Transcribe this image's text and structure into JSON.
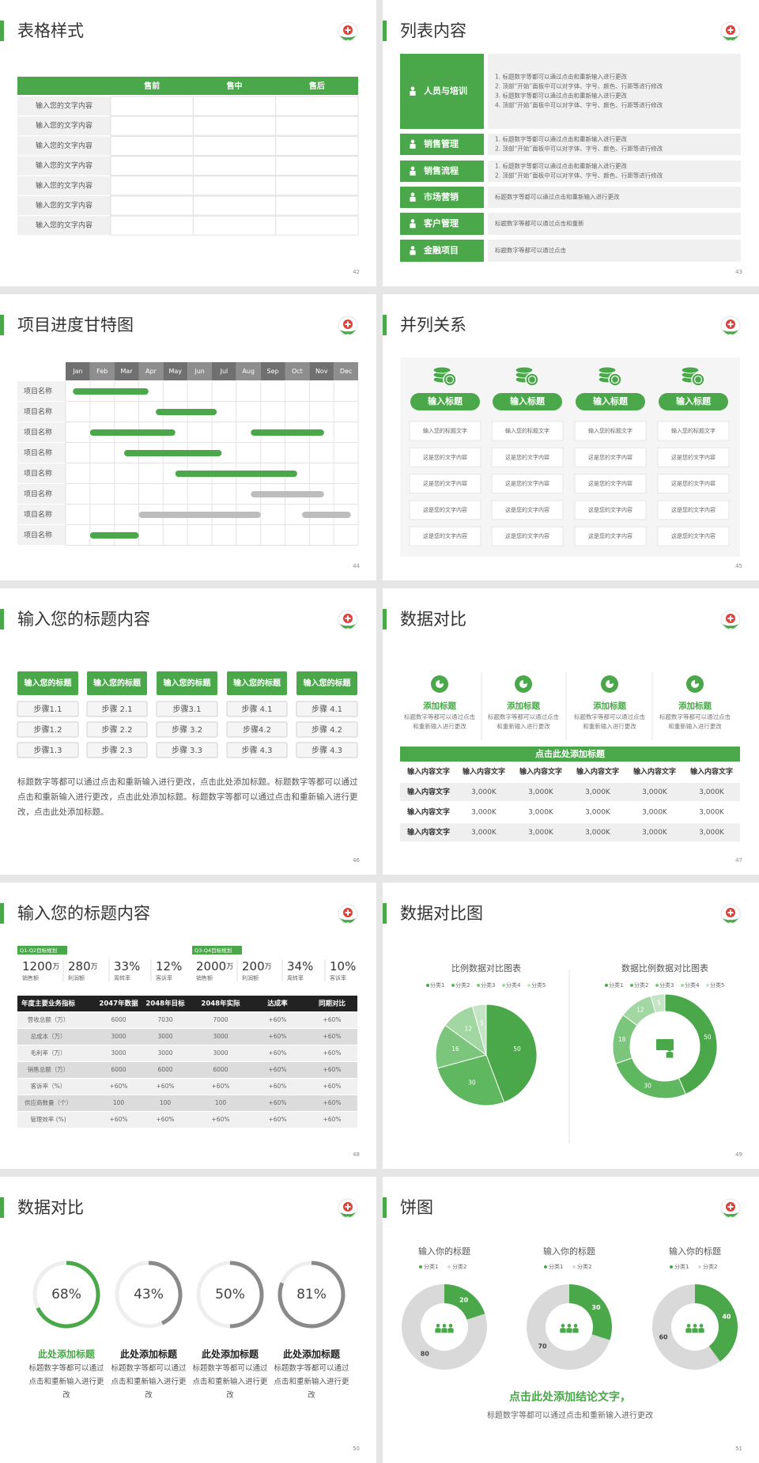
{
  "slides": [
    {
      "title": "表格样式",
      "page": "42",
      "columns": [
        "售前",
        "售中",
        "售后"
      ],
      "rows": [
        "输入您的文字内容",
        "输入您的文字内容",
        "输入您的文字内容",
        "输入您的文字内容",
        "输入您的文字内容",
        "输入您的文字内容",
        "输入您的文字内容"
      ]
    },
    {
      "title": "列表内容",
      "page": "43",
      "items": [
        {
          "label": "人员与培训",
          "lines": [
            "1.  标题数字等都可以通过点击和重新输入进行更改",
            "2.  顶部“开始”面板中可以对字体、字号、颜色、行距等进行修改",
            "3.  标题数字等都可以通过点击和重新输入进行更改",
            "4.  顶部“开始”面板中可以对字体、字号、颜色、行距等进行修改"
          ]
        },
        {
          "label": "销售管理",
          "lines": [
            "1.  标题数字等都可以通过点击和重新输入进行更改",
            "2.  顶部“开始”面板中可以对字体、字号、颜色、行距等进行修改"
          ]
        },
        {
          "label": "销售流程",
          "lines": [
            "1.  标题数字等都可以通过点击和重新输入进行更改",
            "2.  顶部“开始”面板中可以对字体、字号、颜色、行距等进行修改"
          ]
        },
        {
          "label": "市场营销",
          "lines": [
            "标题数字等都可以通过点击和重新输入进行更改"
          ]
        },
        {
          "label": "客户管理",
          "lines": [
            "标题数字等都可以通过点击和重新"
          ]
        },
        {
          "label": "金融项目",
          "lines": [
            "标题数字等都可以通过点击"
          ]
        }
      ]
    },
    {
      "title": "项目进度甘特图",
      "page": "44",
      "months": [
        "Jan",
        "Feb",
        "Mar",
        "Apr",
        "May",
        "Jun",
        "Jul",
        "Aug",
        "Sep",
        "Oct",
        "Nov",
        "Dec"
      ],
      "tasks": [
        {
          "name": "项目名称",
          "bars": [
            {
              "start": 0.3,
              "end": 3.4,
              "color": "#4aa84a"
            }
          ]
        },
        {
          "name": "项目名称",
          "bars": [
            {
              "start": 3.7,
              "end": 6.2,
              "color": "#4aa84a"
            }
          ]
        },
        {
          "name": "项目名称",
          "bars": [
            {
              "start": 1.0,
              "end": 4.5,
              "color": "#4aa84a"
            },
            {
              "start": 7.6,
              "end": 10.6,
              "color": "#4aa84a"
            }
          ]
        },
        {
          "name": "项目名称",
          "bars": [
            {
              "start": 2.4,
              "end": 6.4,
              "color": "#4aa84a"
            }
          ]
        },
        {
          "name": "项目名称",
          "bars": [
            {
              "start": 4.5,
              "end": 9.5,
              "color": "#4aa84a"
            }
          ]
        },
        {
          "name": "项目名称",
          "bars": [
            {
              "start": 7.6,
              "end": 10.6,
              "color": "#bdbdbd"
            }
          ]
        },
        {
          "name": "项目名称",
          "bars": [
            {
              "start": 3.0,
              "end": 8.0,
              "color": "#bdbdbd"
            },
            {
              "start": 9.7,
              "end": 11.7,
              "color": "#bdbdbd"
            }
          ]
        },
        {
          "name": "项目名称",
          "bars": [
            {
              "start": 1.0,
              "end": 3.0,
              "color": "#4aa84a"
            }
          ]
        }
      ]
    },
    {
      "title": "并列关系",
      "page": "45",
      "columns": [
        {
          "title": "输入标题",
          "items": [
            "输入您的标题文字",
            "这是您的文字内容",
            "这是您的文字内容",
            "这是您的文字内容",
            "这是您的文字内容"
          ]
        },
        {
          "title": "输入标题",
          "items": [
            "输入您的标题文字",
            "这是您的文字内容",
            "这是您的文字内容",
            "这是您的文字内容",
            "这是您的文字内容"
          ]
        },
        {
          "title": "输入标题",
          "items": [
            "输入您的标题文字",
            "这是您的文字内容",
            "这是您的文字内容",
            "这是您的文字内容",
            "这是您的文字内容"
          ]
        },
        {
          "title": "输入标题",
          "items": [
            "输入您的标题文字",
            "这是您的文字内容",
            "这是您的文字内容",
            "这是您的文字内容",
            "这是您的文字内容"
          ]
        }
      ]
    },
    {
      "title": "输入您的标题内容",
      "page": "46",
      "columns": [
        {
          "title": "输入您的标题",
          "steps": [
            "步骤1.1",
            "步骤1.2",
            "步骤1.3"
          ]
        },
        {
          "title": "输入您的标题",
          "steps": [
            "步骤 2.1",
            "步骤 2.2",
            "步骤 2.3"
          ]
        },
        {
          "title": "输入您的标题",
          "steps": [
            "步骤3.1",
            "步骤 3.2",
            "步骤 3.3"
          ]
        },
        {
          "title": "输入您的标题",
          "steps": [
            "步骤 4.1",
            "步骤4.2",
            "步骤 4.3"
          ]
        },
        {
          "title": "输入您的标题",
          "steps": [
            "步骤 4.1",
            "步骤 4.2",
            "步骤 4.3"
          ]
        }
      ],
      "paragraph": "标题数字等都可以通过点击和重新输入进行更改，点击此处添加标题。标题数字等都可以通过点击和重新输入进行更改，点击此处添加标题。标题数字等都可以通过点击和重新输入进行更改，点击此处添加标题。"
    },
    {
      "title": "数据对比",
      "page": "47",
      "features": [
        {
          "title": "添加标题",
          "text": "标题数字等都可以通过点击和重新输入进行更改"
        },
        {
          "title": "添加标题",
          "text": "标题数字等都可以通过点击和重新输入进行更改"
        },
        {
          "title": "添加标题",
          "text": "标题数字等都可以通过点击和重新输入进行更改"
        },
        {
          "title": "添加标题",
          "text": "标题数字等都可以通过点击和重新输入进行更改"
        }
      ],
      "banner": "点击此处添加标题",
      "header": [
        "输入内容文字",
        "输入内容文字",
        "输入内容文字",
        "输入内容文字",
        "输入内容文字",
        "输入内容文字"
      ],
      "rows": [
        [
          "输入内容文字",
          "3,000K",
          "3,000K",
          "3,000K",
          "3,000K",
          "3,000K"
        ],
        [
          "输入内容文字",
          "3,000K",
          "3,000K",
          "3,000K",
          "3,000K",
          "3,000K"
        ],
        [
          "输入内容文字",
          "3,000K",
          "3,000K",
          "3,000K",
          "3,000K",
          "3,000K"
        ]
      ]
    },
    {
      "title": "输入您的标题内容",
      "page": "48",
      "groups": [
        {
          "tag": "Q1-Q2目标规划",
          "stats": [
            {
              "value": "1200",
              "unit": "万",
              "label": "销售额"
            },
            {
              "value": "280",
              "unit": "万",
              "label": "利润额"
            },
            {
              "value": "33%",
              "label": "周转率"
            },
            {
              "value": "12%",
              "label": "客诉率"
            }
          ]
        },
        {
          "tag": "Q3-Q4目标规划",
          "stats": [
            {
              "value": "2000",
              "unit": "万",
              "label": "销售额"
            },
            {
              "value": "200",
              "unit": "万",
              "label": "利润额"
            },
            {
              "value": "34%",
              "label": "周转率"
            },
            {
              "value": "10%",
              "label": "客诉率"
            }
          ]
        }
      ],
      "table": {
        "header": [
          "年度主要业务指标",
          "2047年数据",
          "2048年目标",
          "2048年实际",
          "达成率",
          "同期对比"
        ],
        "rows": [
          [
            "营收总额（万）",
            "6000",
            "7030",
            "7000",
            "+60%",
            "+60%"
          ],
          [
            "总成本（万）",
            "3000",
            "3000",
            "3000",
            "+60%",
            "+60%"
          ],
          [
            "毛利率（万）",
            "3000",
            "3000",
            "3000",
            "+60%",
            "+60%"
          ],
          [
            "销售总额（万）",
            "6000",
            "6000",
            "6000",
            "+60%",
            "+60%"
          ],
          [
            "客诉率（%）",
            "+60%",
            "+60%",
            "+60%",
            "+60%",
            "+60%"
          ],
          [
            "供应商数量（个）",
            "100",
            "100",
            "100",
            "+60%",
            "+60%"
          ],
          [
            "管理效率 (%)",
            "+60%",
            "+60%",
            "+60%",
            "+60%",
            "+60%"
          ]
        ]
      }
    },
    {
      "title": "数据对比图",
      "page": "49",
      "charts": [
        {
          "type": "pie",
          "title": "比例数据对比图表",
          "categories": [
            "分类1",
            "分类2",
            "分类3",
            "分类4",
            "分类5"
          ],
          "values": [
            50,
            30,
            16,
            12,
            5
          ],
          "colors": [
            "#4aa84a",
            "#5fb85f",
            "#7cc57c",
            "#a2d6a2",
            "#c4e5c4"
          ]
        },
        {
          "type": "doughnut",
          "title": "数据比例数据对比图表",
          "categories": [
            "分类1",
            "分类2",
            "分类3",
            "分类4",
            "分类5"
          ],
          "values": [
            50,
            30,
            18,
            12,
            5
          ],
          "colors": [
            "#4aa84a",
            "#5fb85f",
            "#7cc57c",
            "#a2d6a2",
            "#c4e5c4"
          ]
        }
      ]
    },
    {
      "title": "数据对比",
      "page": "50",
      "rings": [
        {
          "value": 68,
          "value_label": "68%",
          "color": "#4aa84a",
          "title_color": "#4aa84a",
          "title": "此处添加标题",
          "text": "标题数字等都可以通过点击和重新输入进行更改"
        },
        {
          "value": 43,
          "value_label": "43%",
          "color": "#8a8a8a",
          "title_color": "#222222",
          "title": "此处添加标题",
          "text": "标题数字等都可以通过点击和重新输入进行更改"
        },
        {
          "value": 50,
          "value_label": "50%",
          "color": "#8a8a8a",
          "title_color": "#222222",
          "title": "此处添加标题",
          "text": "标题数字等都可以通过点击和重新输入进行更改"
        },
        {
          "value": 81,
          "value_label": "81%",
          "color": "#8a8a8a",
          "title_color": "#222222",
          "title": "此处添加标题",
          "text": "标题数字等都可以通过点击和重新输入进行更改"
        }
      ]
    },
    {
      "title": "饼图",
      "page": "51",
      "colors": [
        "#4aa84a",
        "#d9d9d9"
      ],
      "charts": [
        {
          "type": "doughnut",
          "title": "输入你的标题",
          "categories": [
            "分类1",
            "分类2"
          ],
          "values": [
            20,
            80
          ]
        },
        {
          "type": "doughnut",
          "title": "输入你的标题",
          "categories": [
            "分类1",
            "分类2"
          ],
          "values": [
            30,
            70
          ]
        },
        {
          "type": "doughnut",
          "title": "输入你的标题",
          "categories": [
            "分类1",
            "分类2"
          ],
          "values": [
            40,
            60
          ]
        }
      ],
      "conclusion": "点击此处添加结论文字，",
      "note": "标题数字等都可以通过点击和重新输入进行更改"
    }
  ]
}
